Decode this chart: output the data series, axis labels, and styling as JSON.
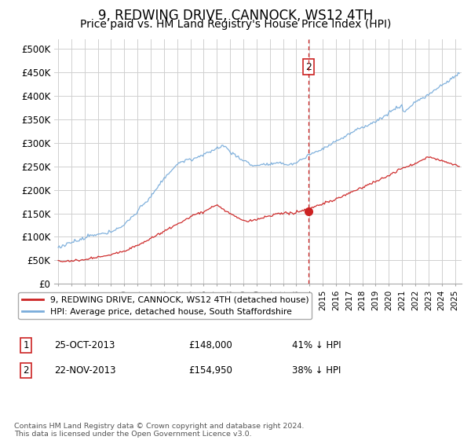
{
  "title": "9, REDWING DRIVE, CANNOCK, WS12 4TH",
  "subtitle": "Price paid vs. HM Land Registry's House Price Index (HPI)",
  "ylabel_ticks": [
    "£0",
    "£50K",
    "£100K",
    "£150K",
    "£200K",
    "£250K",
    "£300K",
    "£350K",
    "£400K",
    "£450K",
    "£500K"
  ],
  "ytick_values": [
    0,
    50000,
    100000,
    150000,
    200000,
    250000,
    300000,
    350000,
    400000,
    450000,
    500000
  ],
  "ylim": [
    0,
    520000
  ],
  "xlim_start": 1994.7,
  "xlim_end": 2025.5,
  "hpi_color": "#7aaddb",
  "price_color": "#cc2222",
  "marker2_date": 2013.92,
  "marker2_price": 154950,
  "annotation_box_color": "#cc2222",
  "legend_entry1": "9, REDWING DRIVE, CANNOCK, WS12 4TH (detached house)",
  "legend_entry2": "HPI: Average price, detached house, South Staffordshire",
  "table_row1": [
    "1",
    "25-OCT-2013",
    "£148,000",
    "41% ↓ HPI"
  ],
  "table_row2": [
    "2",
    "22-NOV-2013",
    "£154,950",
    "38% ↓ HPI"
  ],
  "footnote": "Contains HM Land Registry data © Crown copyright and database right 2024.\nThis data is licensed under the Open Government Licence v3.0.",
  "background_color": "#ffffff",
  "grid_color": "#d0d0d0",
  "title_fontsize": 12,
  "subtitle_fontsize": 10
}
